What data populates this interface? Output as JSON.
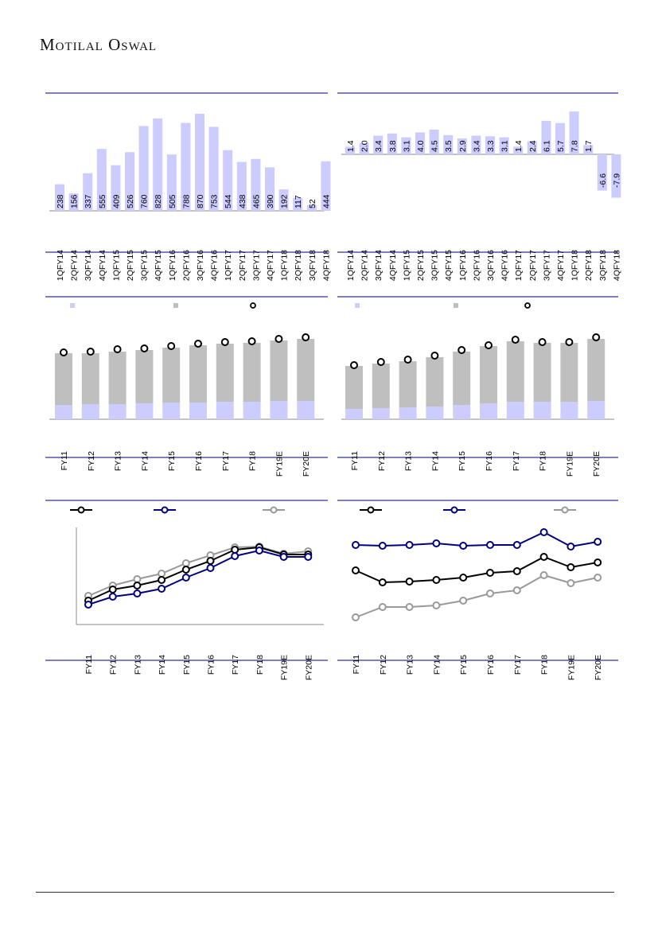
{
  "header": {
    "logo_text": "Motilal Oswal"
  },
  "colors": {
    "bar": "#ccccff",
    "stack_top": "#bfbfbf",
    "rule": "#333399",
    "black": "#000000",
    "navy": "#000080",
    "gray": "#999999"
  },
  "chart_data": [
    {
      "type": "bar",
      "categories": [
        "1QFY14",
        "2QFY14",
        "3QFY14",
        "4QFY14",
        "1QFY15",
        "2QFY15",
        "3QFY15",
        "4QFY15",
        "1QFY16",
        "2QFY16",
        "3QFY16",
        "4QFY16",
        "1QFY17",
        "2QFY17",
        "3QFY17",
        "4QFY17",
        "1QFY18",
        "2QFY18",
        "3QFY18",
        "4QFY18"
      ],
      "values": [
        238,
        156,
        337,
        555,
        409,
        526,
        760,
        828,
        505,
        788,
        870,
        753,
        544,
        438,
        465,
        390,
        192,
        117,
        52,
        444
      ],
      "data_labels": [
        "238",
        "156",
        "337",
        "555",
        "409",
        "526",
        "760",
        "828",
        "505",
        "788",
        "870",
        "753",
        "544",
        "438",
        "465",
        "390",
        "192",
        "117",
        "52",
        "444"
      ],
      "ylim": [
        0,
        870
      ]
    },
    {
      "type": "bar",
      "categories": [
        "1QFY14",
        "2QFY14",
        "3QFY14",
        "4QFY14",
        "1QFY15",
        "2QFY15",
        "3QFY15",
        "4QFY15",
        "1QFY16",
        "2QFY16",
        "3QFY16",
        "4QFY16",
        "1QFY17",
        "2QFY17",
        "3QFY17",
        "4QFY17",
        "1QFY18",
        "2QFY18",
        "3QFY18",
        "4QFY18"
      ],
      "values": [
        1.4,
        2.0,
        3.4,
        3.8,
        3.1,
        4.0,
        4.5,
        3.5,
        2.9,
        3.4,
        3.3,
        3.1,
        1.4,
        2.4,
        6.1,
        5.7,
        7.8,
        1.7,
        -6.6,
        -7.9
      ],
      "data_labels": [
        "1.4",
        "2.0",
        "3.4",
        "3.8",
        "3.1",
        "4.0",
        "4.5",
        "3.5",
        "2.9",
        "3.4",
        "3.3",
        "3.1",
        "1.4",
        "2.4",
        "6.1",
        "5.7",
        "7.8",
        "1.7",
        "-6.6",
        "-7.9"
      ],
      "ylim": [
        -7.9,
        7.8
      ]
    },
    {
      "type": "bar",
      "stacked": true,
      "categories": [
        "FY11",
        "FY12",
        "FY13",
        "FY14",
        "FY15",
        "FY16",
        "FY17",
        "FY18",
        "FY19E",
        "FY20E"
      ],
      "series": [
        {
          "name": "",
          "kind": "bar",
          "values": [
            18,
            19,
            19,
            20,
            21,
            21,
            22,
            22,
            23,
            23
          ]
        },
        {
          "name": "",
          "kind": "bar",
          "values": [
            65,
            64,
            66,
            67,
            69,
            72,
            73,
            74,
            76,
            78
          ]
        },
        {
          "name": "",
          "kind": "marker",
          "values": [
            82,
            83,
            86,
            87,
            90,
            93,
            95,
            96,
            99,
            101
          ]
        }
      ],
      "ylim": [
        0,
        110
      ]
    },
    {
      "type": "bar",
      "stacked": true,
      "categories": [
        "FY11",
        "FY12",
        "FY13",
        "FY14",
        "FY15",
        "FY16",
        "FY17",
        "FY18",
        "FY19E",
        "FY20E"
      ],
      "series": [
        {
          "name": "",
          "kind": "bar",
          "values": [
            13,
            14,
            15,
            16,
            18,
            20,
            22,
            22,
            22,
            23
          ]
        },
        {
          "name": "",
          "kind": "bar",
          "values": [
            54,
            56,
            58,
            62,
            67,
            72,
            76,
            74,
            74,
            78
          ]
        },
        {
          "name": "",
          "kind": "marker",
          "values": [
            66,
            70,
            73,
            78,
            85,
            91,
            98,
            95,
            95,
            101
          ]
        }
      ],
      "ylim": [
        0,
        110
      ]
    },
    {
      "type": "line",
      "categories": [
        "FY11",
        "FY12",
        "FY13",
        "FY14",
        "FY15",
        "FY16",
        "FY17",
        "FY18",
        "FY19E",
        "FY20E"
      ],
      "series": [
        {
          "name": "",
          "values": [
            30,
            44,
            49,
            56,
            69,
            80,
            94,
            97,
            88,
            88
          ]
        },
        {
          "name": "",
          "values": [
            25,
            35,
            39,
            45,
            59,
            71,
            86,
            93,
            85,
            85
          ]
        },
        {
          "name": "",
          "values": [
            36,
            49,
            57,
            64,
            77,
            87,
            97,
            98,
            89,
            92
          ]
        }
      ],
      "ylim": [
        0,
        120
      ]
    },
    {
      "type": "line",
      "categories": [
        "FY11",
        "FY12",
        "FY13",
        "FY14",
        "FY15",
        "FY16",
        "FY17",
        "FY18",
        "FY19E",
        "FY20E"
      ],
      "series": [
        {
          "name": "",
          "values": [
            68,
            53,
            54,
            56,
            59,
            65,
            67,
            85,
            72,
            78
          ]
        },
        {
          "name": "",
          "values": [
            100,
            99,
            100,
            102,
            99,
            100,
            100,
            116,
            98,
            104
          ]
        },
        {
          "name": "",
          "values": [
            9,
            22,
            22,
            24,
            30,
            39,
            43,
            62,
            52,
            59
          ]
        }
      ],
      "ylim": [
        0,
        120
      ]
    }
  ]
}
